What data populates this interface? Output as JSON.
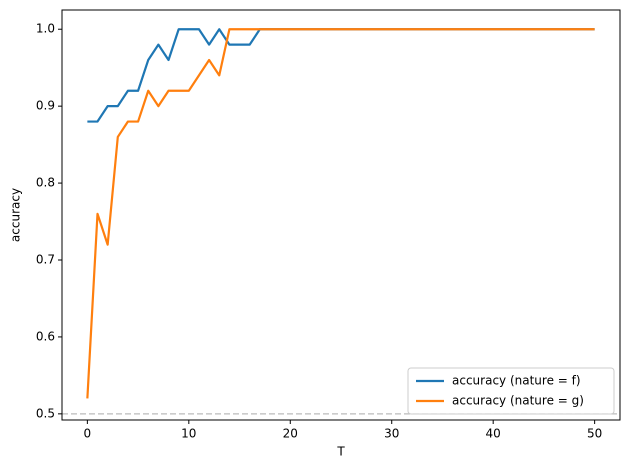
{
  "chart_data": {
    "type": "line",
    "xlabel": "T",
    "ylabel": "accuracy",
    "x": [
      0,
      1,
      2,
      3,
      4,
      5,
      6,
      7,
      8,
      9,
      10,
      11,
      12,
      13,
      14,
      15,
      16,
      17,
      18,
      19,
      20,
      21,
      22,
      23,
      24,
      25,
      26,
      27,
      28,
      29,
      30,
      31,
      32,
      33,
      34,
      35,
      36,
      37,
      38,
      39,
      40,
      41,
      42,
      43,
      44,
      45,
      46,
      47,
      48,
      49,
      50
    ],
    "series": [
      {
        "name": "accuracy (nature = f)",
        "color": "#1f77b4",
        "values": [
          0.88,
          0.88,
          0.9,
          0.9,
          0.92,
          0.92,
          0.96,
          0.98,
          0.96,
          1,
          1,
          1,
          0.98,
          1,
          0.98,
          0.98,
          0.98,
          1,
          1,
          1,
          1,
          1,
          1,
          1,
          1,
          1,
          1,
          1,
          1,
          1,
          1,
          1,
          1,
          1,
          1,
          1,
          1,
          1,
          1,
          1,
          1,
          1,
          1,
          1,
          1,
          1,
          1,
          1,
          1,
          1,
          1
        ]
      },
      {
        "name": "accuracy (nature = g)",
        "color": "#ff7f0e",
        "values": [
          0.52,
          0.76,
          0.72,
          0.86,
          0.88,
          0.88,
          0.92,
          0.9,
          0.92,
          0.92,
          0.92,
          0.94,
          0.96,
          0.94,
          1,
          1,
          1,
          1,
          1,
          1,
          1,
          1,
          1,
          1,
          1,
          1,
          1,
          1,
          1,
          1,
          1,
          1,
          1,
          1,
          1,
          1,
          1,
          1,
          1,
          1,
          1,
          1,
          1,
          1,
          1,
          1,
          1,
          1,
          1,
          1,
          1
        ]
      }
    ],
    "hline": 0.5,
    "hline_color": "#bbbbbb",
    "xlim": [
      -2.5,
      52.5
    ],
    "ylim": [
      0.492,
      1.025
    ],
    "xticks": [
      0,
      10,
      20,
      30,
      40,
      50
    ],
    "yticks": [
      0.5,
      0.6,
      0.7,
      0.8,
      0.9,
      {
        "value": 1,
        "label": "1.0"
      }
    ],
    "legend": "lower right"
  }
}
